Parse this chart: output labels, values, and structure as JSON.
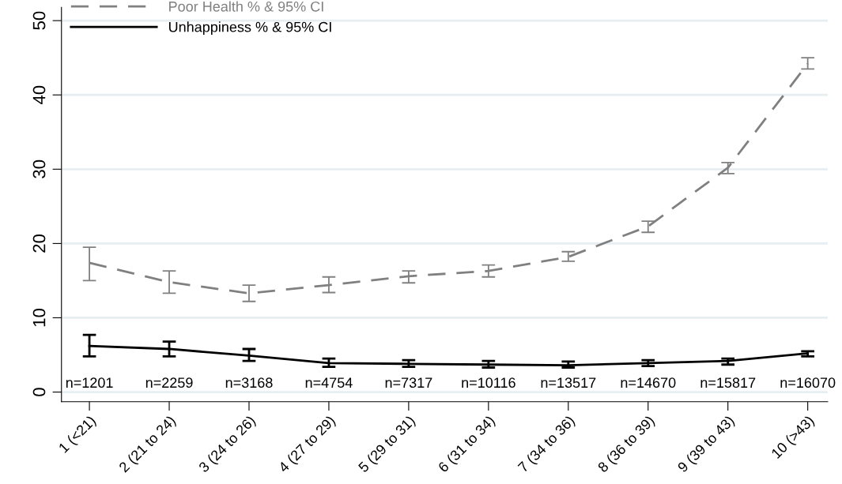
{
  "chart_data": {
    "type": "line",
    "categories": [
      "1 (<21)",
      "2 (21 to 24)",
      "3 (24 to 26)",
      "4 (27 to 29)",
      "5 (29 to 31)",
      "6 (31 to 34)",
      "7 (34 to 36)",
      "8 (36 to 39)",
      "9 (39 to 43)",
      "10 (>43)"
    ],
    "series": [
      {
        "name": "Poor Health % & 95% CI",
        "color": "#808080",
        "line_style": "dashed",
        "values": [
          17.4,
          14.8,
          13.3,
          14.4,
          15.6,
          16.3,
          18.2,
          22.3,
          30.2,
          44.2
        ],
        "errors": [
          [
            15.0,
            19.5
          ],
          [
            13.3,
            16.3
          ],
          [
            12.2,
            14.4
          ],
          [
            13.4,
            15.5
          ],
          [
            14.7,
            16.3
          ],
          [
            15.5,
            17.1
          ],
          [
            17.6,
            18.9
          ],
          [
            21.5,
            23.0
          ],
          [
            29.4,
            30.9
          ],
          [
            43.5,
            45.0
          ]
        ]
      },
      {
        "name": "Unhappiness % & 95% CI",
        "color": "#000000",
        "line_style": "solid",
        "values": [
          6.2,
          5.8,
          4.9,
          3.9,
          3.8,
          3.7,
          3.6,
          3.9,
          4.2,
          5.2
        ],
        "errors": [
          [
            4.8,
            7.7
          ],
          [
            4.8,
            6.8
          ],
          [
            4.2,
            5.8
          ],
          [
            3.4,
            4.5
          ],
          [
            3.4,
            4.3
          ],
          [
            3.3,
            4.2
          ],
          [
            3.3,
            4.1
          ],
          [
            3.5,
            4.3
          ],
          [
            3.7,
            4.5
          ],
          [
            4.8,
            5.5
          ]
        ]
      }
    ],
    "ylim": [
      -1.3,
      51.8
    ],
    "yticks": [
      0,
      10,
      20,
      30,
      40,
      50
    ],
    "grid": "y",
    "legend": "top left",
    "marker": "none",
    "annotations": [
      "n=1201",
      "n=2259",
      "n=3168",
      "n=4754",
      "n=7317",
      "n=10116",
      "n=13517",
      "n=14670",
      "n=15817",
      "n=16070"
    ]
  }
}
